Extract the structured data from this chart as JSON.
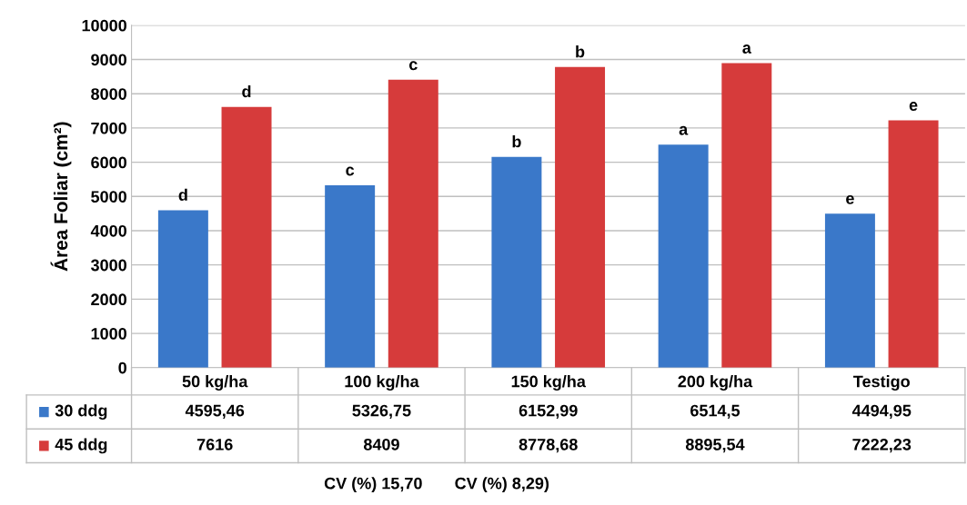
{
  "chart_data": {
    "type": "bar",
    "ylabel": "Área Foliar (cm²)",
    "categories": [
      "50 kg/ha",
      "100 kg/ha",
      "150 kg/ha",
      "200 kg/ha",
      "Testigo"
    ],
    "series": [
      {
        "name": "30 ddg",
        "color": "#3a78c9",
        "values": [
          4595.46,
          5326.75,
          6152.99,
          6514.5,
          4494.95
        ],
        "value_labels": [
          "4595,46",
          "5326,75",
          "6152,99",
          "6514,5",
          "4494,95"
        ]
      },
      {
        "name": "45 ddg",
        "color": "#d63b3b",
        "values": [
          7616,
          8409,
          8778.68,
          8895.54,
          7222.23
        ],
        "value_labels": [
          "7616",
          "8409",
          "8778,68",
          "8895,54",
          "7222,23"
        ]
      }
    ],
    "ylim": [
      0,
      10000
    ],
    "yticks": [
      0,
      1000,
      2000,
      3000,
      4000,
      5000,
      6000,
      7000,
      8000,
      9000,
      10000
    ],
    "grid": "y",
    "legend": "bottom",
    "annotations": [
      "d",
      "c",
      "b",
      "a",
      "e",
      "d",
      "c",
      "b",
      "a",
      "e",
      "CV (%) 15,70",
      "CV (%) 8,29)"
    ]
  }
}
